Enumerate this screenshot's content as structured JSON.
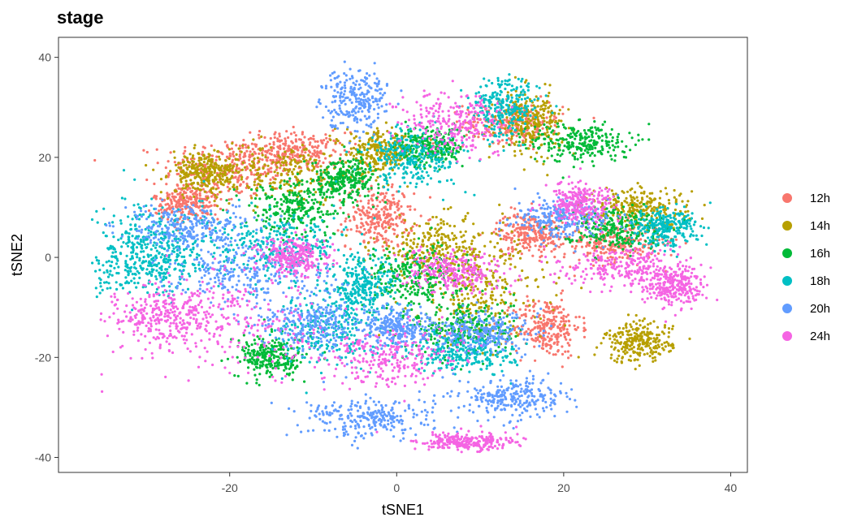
{
  "chart_data": {
    "type": "scatter",
    "title": "stage",
    "xlabel": "tSNE1",
    "ylabel": "tSNE2",
    "xlim": [
      -40.5,
      42
    ],
    "ylim": [
      -43,
      44
    ],
    "x_ticks": [
      -20,
      0,
      20,
      40
    ],
    "y_ticks": [
      -40,
      -20,
      0,
      20,
      40
    ],
    "x_tick_labels": [
      "-20",
      "0",
      "20",
      "40"
    ],
    "y_tick_labels": [
      "-40",
      "-20",
      "0",
      "20",
      "40"
    ],
    "grid": false,
    "legend_position": "right",
    "series": [
      {
        "name": "12h",
        "color": "#F8766D",
        "clusters": [
          [
            -20,
            18,
            4,
            3
          ],
          [
            -12,
            21,
            3,
            2
          ],
          [
            -2,
            8,
            2,
            3
          ],
          [
            18,
            -14,
            2,
            3
          ],
          [
            14,
            27,
            3,
            2
          ],
          [
            26,
            3,
            3,
            2
          ],
          [
            16,
            5,
            2,
            2
          ],
          [
            -25,
            11,
            2,
            2
          ]
        ]
      },
      {
        "name": "14h",
        "color": "#B79F00",
        "clusters": [
          [
            -14,
            17,
            5,
            3
          ],
          [
            10,
            -7,
            4,
            5
          ],
          [
            5,
            2,
            4,
            3
          ],
          [
            -2,
            21,
            2,
            2
          ],
          [
            16,
            27,
            2,
            3
          ],
          [
            29,
            10,
            3,
            2
          ],
          [
            29,
            -17,
            2,
            2
          ],
          [
            -23,
            17,
            2,
            2
          ]
        ]
      },
      {
        "name": "16h",
        "color": "#00BA38",
        "clusters": [
          [
            -6,
            16,
            2,
            2
          ],
          [
            2,
            -4,
            3,
            3
          ],
          [
            8,
            -14,
            3,
            3
          ],
          [
            22,
            23,
            3,
            2
          ],
          [
            26,
            6,
            3,
            2
          ],
          [
            -12,
            10,
            3,
            3
          ],
          [
            4,
            22,
            2,
            2
          ],
          [
            -15,
            -20,
            2,
            2
          ]
        ]
      },
      {
        "name": "18h",
        "color": "#00BFC4",
        "clusters": [
          [
            -28,
            4,
            4,
            4
          ],
          [
            -14,
            2,
            4,
            3
          ],
          [
            -8,
            -14,
            3,
            4
          ],
          [
            8,
            -19,
            3,
            2
          ],
          [
            2,
            20,
            3,
            3
          ],
          [
            13,
            30,
            2,
            3
          ],
          [
            32,
            6,
            2,
            2
          ],
          [
            -4,
            -6,
            2,
            3
          ],
          [
            -30,
            -2,
            3,
            3
          ]
        ]
      },
      {
        "name": "20h",
        "color": "#619CFF",
        "clusters": [
          [
            -5,
            32,
            2,
            3
          ],
          [
            -18,
            -3,
            5,
            3
          ],
          [
            14,
            -28,
            3,
            2
          ],
          [
            -3,
            -32,
            4,
            2
          ],
          [
            0,
            -14,
            2,
            2
          ],
          [
            -10,
            -13,
            3,
            3
          ],
          [
            20,
            8,
            3,
            2
          ],
          [
            10,
            -15,
            3,
            2
          ],
          [
            -25,
            6,
            4,
            2
          ]
        ]
      },
      {
        "name": "24h",
        "color": "#F564E3",
        "clusters": [
          [
            -20,
            -13,
            6,
            5
          ],
          [
            -1,
            -20,
            4,
            3
          ],
          [
            7,
            27,
            3,
            3
          ],
          [
            28,
            -2,
            4,
            2
          ],
          [
            8,
            -37,
            3,
            1
          ],
          [
            33,
            -6,
            2,
            2
          ],
          [
            -12,
            0,
            2,
            2
          ],
          [
            -28,
            -12,
            3,
            3
          ],
          [
            22,
            11,
            2,
            2
          ],
          [
            7,
            -3,
            3,
            2
          ]
        ]
      }
    ]
  },
  "legend_items": [
    {
      "label": "12h",
      "color": "#F8766D"
    },
    {
      "label": "14h",
      "color": "#B79F00"
    },
    {
      "label": "16h",
      "color": "#00BA38"
    },
    {
      "label": "18h",
      "color": "#00BFC4"
    },
    {
      "label": "20h",
      "color": "#619CFF"
    },
    {
      "label": "24h",
      "color": "#F564E3"
    }
  ]
}
